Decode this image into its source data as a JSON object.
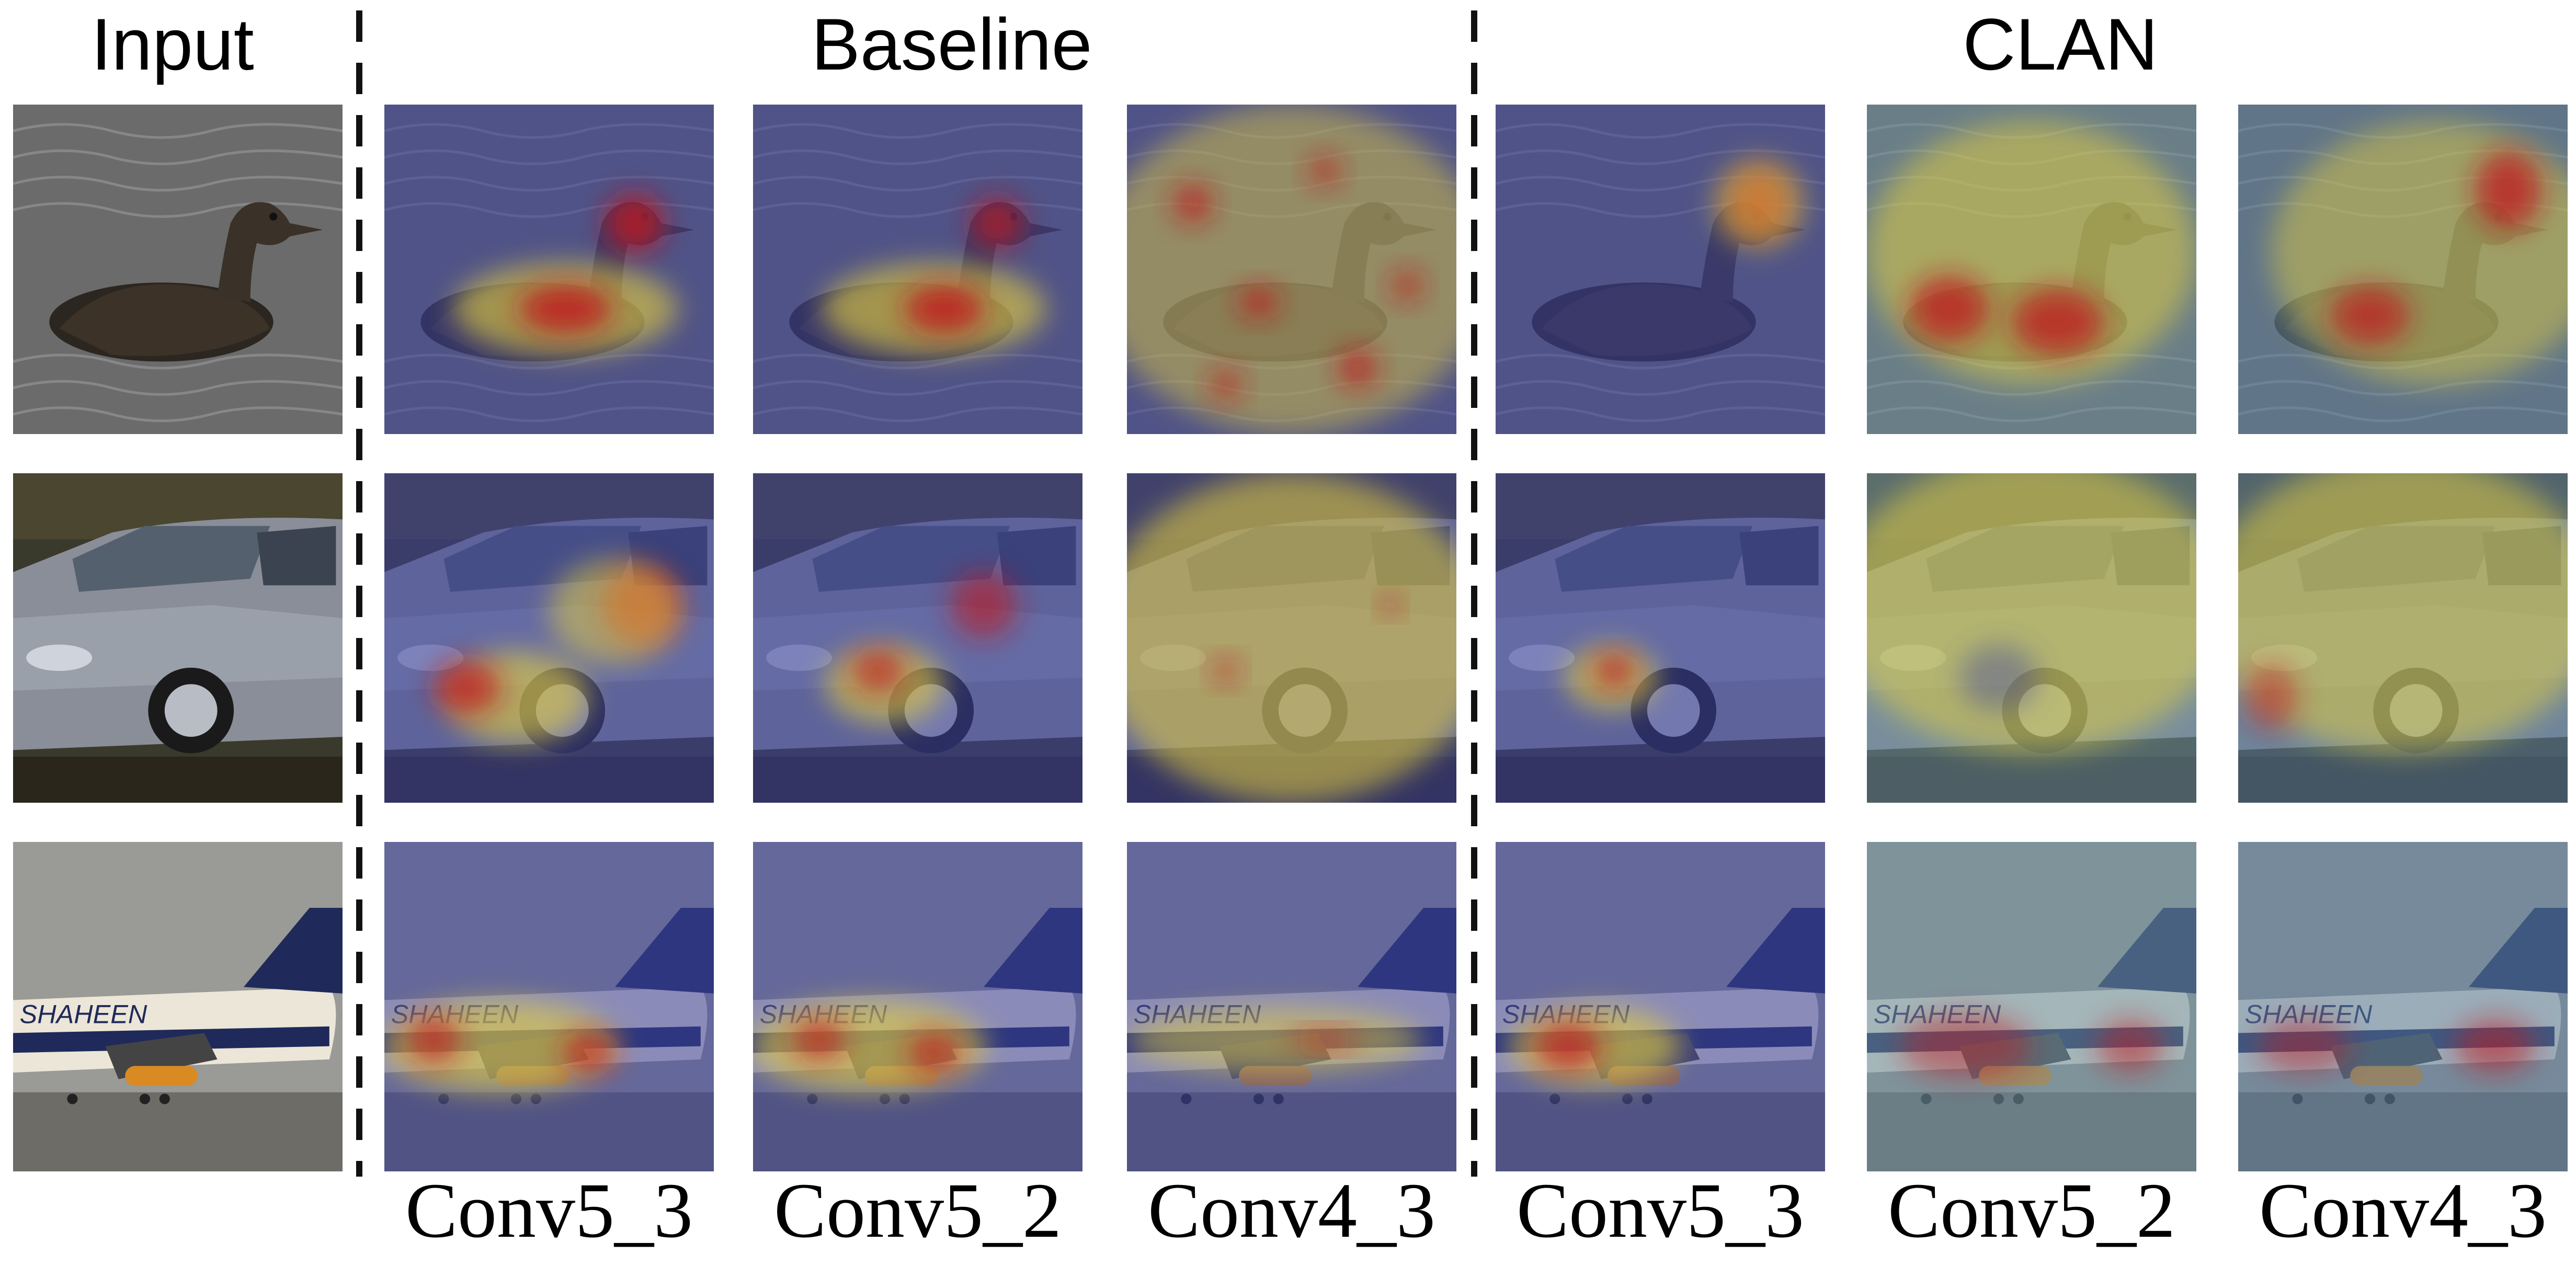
{
  "headers": {
    "input": "Input",
    "baseline": "Baseline",
    "clan": "CLAN"
  },
  "column_labels": [
    "Conv5_3",
    "Conv5_2",
    "Conv4_3",
    "Conv5_3",
    "Conv5_2",
    "Conv4_3"
  ],
  "rows": [
    {
      "subject": "bird on water",
      "scene_color": "#5c5a55"
    },
    {
      "subject": "silver sedan car",
      "scene_color": "#6a6e7a"
    },
    {
      "subject": "airplane on runway",
      "scene_color": "#8a8a88"
    }
  ],
  "airplane_livery_text": "SHAHEEN",
  "colors": {
    "heat_high": "#c0141c",
    "heat_mid": "#e8d23c",
    "heat_low": "#3a3f9e",
    "divider": "#111111"
  }
}
